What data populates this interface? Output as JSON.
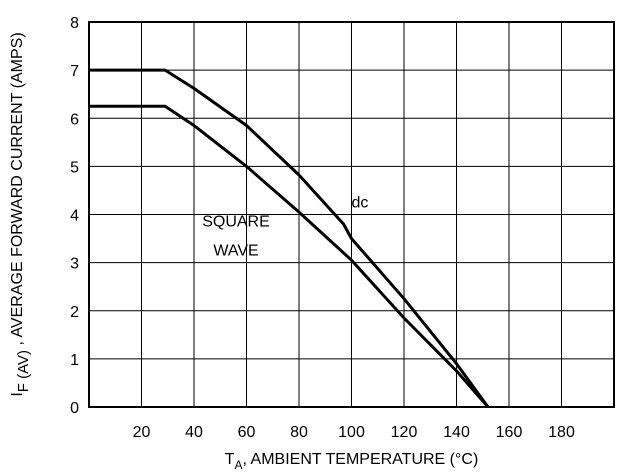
{
  "chart_data": {
    "type": "line",
    "xlabel": {
      "main": "T",
      "sub": "A",
      "rest": ", AMBIENT TEMPERATURE (°C)"
    },
    "ylabel": {
      "main": "I",
      "sub": "F (AV)",
      "rest": " , AVERAGE FORWARD CURRENT (AMPS)"
    },
    "xlim": [
      0,
      200
    ],
    "ylim": [
      0,
      8
    ],
    "x_ticks": [
      20,
      40,
      60,
      80,
      100,
      120,
      140,
      160,
      180
    ],
    "y_ticks": [
      0,
      1,
      2,
      3,
      4,
      5,
      6,
      7,
      8
    ],
    "grid": true,
    "series": [
      {
        "name": "dc",
        "points": [
          [
            0,
            7.0
          ],
          [
            29,
            7.0
          ],
          [
            40,
            6.62
          ],
          [
            60,
            5.85
          ],
          [
            80,
            4.82
          ],
          [
            97,
            3.8
          ],
          [
            100,
            3.5
          ],
          [
            120,
            2.25
          ],
          [
            140,
            0.9
          ],
          [
            152,
            0
          ]
        ]
      },
      {
        "name": "SQUARE WAVE",
        "points": [
          [
            0,
            6.25
          ],
          [
            29,
            6.25
          ],
          [
            40,
            5.85
          ],
          [
            60,
            5.0
          ],
          [
            80,
            4.05
          ],
          [
            100,
            3.05
          ],
          [
            120,
            1.85
          ],
          [
            140,
            0.75
          ],
          [
            152,
            0
          ]
        ]
      }
    ],
    "annotations": [
      {
        "text": "dc",
        "x": 100,
        "y": 4.15,
        "anchor": "start"
      },
      {
        "text": "SQUARE",
        "x": 56,
        "y": 3.75,
        "anchor": "middle"
      },
      {
        "text": "WAVE",
        "x": 56,
        "y": 3.15,
        "anchor": "middle"
      }
    ]
  }
}
